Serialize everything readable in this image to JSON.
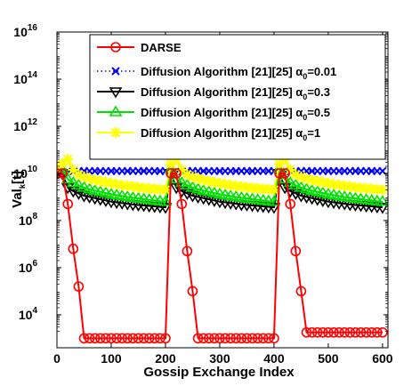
{
  "chart_data": {
    "type": "line",
    "xlabel": "Gossip Exchange Index",
    "ylabel": "Val",
    "ylabel_sub": "k",
    "ylabel_suffix": "[t]",
    "xlim": [
      0,
      610
    ],
    "ylim_log10": [
      2.6,
      16
    ],
    "log_y": true,
    "grid": false,
    "legend_position": "top-right",
    "x_ticks": [
      {
        "value": 0,
        "label": "0"
      },
      {
        "value": 100,
        "label": "100"
      },
      {
        "value": 200,
        "label": "200"
      },
      {
        "value": 300,
        "label": "300"
      },
      {
        "value": 400,
        "label": "400"
      },
      {
        "value": 500,
        "label": "500"
      },
      {
        "value": 600,
        "label": "600"
      }
    ],
    "y_ticks": [
      {
        "exp": 4,
        "base": "10",
        "power": "4"
      },
      {
        "exp": 6,
        "base": "10",
        "power": "6"
      },
      {
        "exp": 8,
        "base": "10",
        "power": "8"
      },
      {
        "exp": 10,
        "base": "10",
        "power": "10"
      },
      {
        "exp": 12,
        "base": "10",
        "power": "12"
      },
      {
        "exp": 14,
        "base": "10",
        "power": "14"
      },
      {
        "exp": 16,
        "base": "10",
        "power": "16"
      }
    ],
    "series": [
      {
        "name": "DARSE",
        "color": "#ff0000",
        "marker": "circle",
        "line": "solid",
        "x": [
          0,
          10,
          20,
          30,
          40,
          50,
          60,
          70,
          80,
          90,
          100,
          110,
          120,
          130,
          140,
          150,
          160,
          170,
          180,
          190,
          200,
          210,
          220,
          230,
          240,
          250,
          260,
          270,
          280,
          290,
          300,
          310,
          320,
          330,
          340,
          350,
          360,
          370,
          380,
          390,
          400,
          410,
          420,
          430,
          440,
          450,
          460,
          470,
          480,
          490,
          500,
          510,
          520,
          530,
          540,
          550,
          560,
          570,
          580,
          590,
          600
        ],
        "log10_y": [
          10.0,
          10.0,
          8.7,
          6.8,
          5.2,
          3.0,
          3.0,
          3.0,
          3.0,
          3.0,
          3.0,
          3.0,
          3.0,
          3.0,
          3.0,
          3.0,
          3.0,
          3.0,
          3.0,
          3.0,
          3.0,
          10.0,
          10.0,
          8.7,
          6.7,
          5.0,
          3.0,
          3.0,
          3.0,
          3.0,
          3.0,
          3.0,
          3.0,
          3.0,
          3.0,
          3.0,
          3.0,
          3.0,
          3.0,
          3.0,
          3.0,
          10.0,
          10.0,
          8.7,
          6.7,
          5.0,
          3.25,
          3.25,
          3.25,
          3.25,
          3.25,
          3.25,
          3.25,
          3.25,
          3.25,
          3.25,
          3.25,
          3.25,
          3.25,
          3.25,
          3.25
        ]
      },
      {
        "name": "Diffusion Algorithm [21][25] α0=0.01",
        "legend_main": "Diffusion Algorithm [21][25] α",
        "legend_sub": "0",
        "legend_suffix": "=0.01",
        "color": "#0000ff",
        "marker": "x",
        "line": "dotted",
        "x": [
          0,
          10,
          20,
          30,
          40,
          50,
          60,
          70,
          80,
          90,
          100,
          110,
          120,
          130,
          140,
          150,
          160,
          170,
          180,
          190,
          200,
          210,
          220,
          230,
          240,
          250,
          260,
          270,
          280,
          290,
          300,
          310,
          320,
          330,
          340,
          350,
          360,
          370,
          380,
          390,
          400,
          410,
          420,
          430,
          440,
          450,
          460,
          470,
          480,
          490,
          500,
          510,
          520,
          530,
          540,
          550,
          560,
          570,
          580,
          590,
          600
        ],
        "log10_y": [
          10.1,
          10.1,
          10.1,
          10.1,
          10.1,
          10.1,
          10.1,
          10.1,
          10.1,
          10.1,
          10.1,
          10.1,
          10.1,
          10.1,
          10.1,
          10.1,
          10.1,
          10.1,
          10.1,
          10.1,
          10.1,
          10.1,
          10.1,
          10.1,
          10.1,
          10.1,
          10.1,
          10.1,
          10.1,
          10.1,
          10.1,
          10.1,
          10.1,
          10.1,
          10.1,
          10.1,
          10.1,
          10.1,
          10.1,
          10.1,
          10.1,
          10.1,
          10.1,
          10.1,
          10.1,
          10.1,
          10.1,
          10.1,
          10.1,
          10.1,
          10.1,
          10.1,
          10.1,
          10.1,
          10.1,
          10.1,
          10.1,
          10.1,
          10.1,
          10.1,
          10.1
        ]
      },
      {
        "name": "Diffusion Algorithm [21][25] α0=0.3",
        "legend_main": "Diffusion Algorithm [21][25] α",
        "legend_sub": "0",
        "legend_suffix": "=0.3",
        "color": "#000000",
        "marker": "triangle-down",
        "line": "solid",
        "x": [
          0,
          10,
          20,
          30,
          40,
          50,
          60,
          70,
          80,
          90,
          100,
          110,
          120,
          130,
          140,
          150,
          160,
          170,
          180,
          190,
          200,
          210,
          220,
          230,
          240,
          250,
          260,
          270,
          280,
          290,
          300,
          310,
          320,
          330,
          340,
          350,
          360,
          370,
          380,
          390,
          400,
          410,
          420,
          430,
          440,
          450,
          460,
          470,
          480,
          490,
          500,
          510,
          520,
          530,
          540,
          550,
          560,
          570,
          580,
          590,
          600
        ],
        "log10_y": [
          10.1,
          10.0,
          9.4,
          9.25,
          9.15,
          9.05,
          9.0,
          8.95,
          8.9,
          8.85,
          8.8,
          8.77,
          8.74,
          8.71,
          8.68,
          8.66,
          8.64,
          8.62,
          8.6,
          8.58,
          8.56,
          10.0,
          9.4,
          9.25,
          9.15,
          9.05,
          9.0,
          8.95,
          8.9,
          8.85,
          8.8,
          8.77,
          8.74,
          8.71,
          8.68,
          8.66,
          8.64,
          8.62,
          8.6,
          8.58,
          8.56,
          10.0,
          9.4,
          9.25,
          9.15,
          9.05,
          9.0,
          8.95,
          8.9,
          8.85,
          8.8,
          8.77,
          8.74,
          8.71,
          8.68,
          8.66,
          8.64,
          8.62,
          8.6,
          8.58,
          8.56
        ]
      },
      {
        "name": "Diffusion Algorithm [21][25] α0=0.5",
        "legend_main": "Diffusion Algorithm [21][25] α",
        "legend_sub": "0",
        "legend_suffix": "=0.5",
        "color": "#00e000",
        "marker": "triangle-up",
        "line": "solid",
        "x": [
          0,
          10,
          20,
          30,
          40,
          50,
          60,
          70,
          80,
          90,
          100,
          110,
          120,
          130,
          140,
          150,
          160,
          170,
          180,
          190,
          200,
          210,
          220,
          230,
          240,
          250,
          260,
          270,
          280,
          290,
          300,
          310,
          320,
          330,
          340,
          350,
          360,
          370,
          380,
          390,
          400,
          410,
          420,
          430,
          440,
          450,
          460,
          470,
          480,
          490,
          500,
          510,
          520,
          530,
          540,
          550,
          560,
          570,
          580,
          590,
          600
        ],
        "log10_y": [
          10.15,
          10.2,
          9.75,
          9.6,
          9.5,
          9.4,
          9.33,
          9.27,
          9.22,
          9.17,
          9.12,
          9.08,
          9.04,
          9.0,
          8.97,
          8.94,
          8.91,
          8.88,
          8.85,
          8.82,
          8.8,
          10.2,
          9.75,
          9.6,
          9.5,
          9.4,
          9.33,
          9.27,
          9.22,
          9.17,
          9.12,
          9.08,
          9.04,
          9.0,
          8.97,
          8.94,
          8.91,
          8.88,
          8.85,
          8.82,
          8.8,
          10.2,
          9.75,
          9.6,
          9.5,
          9.4,
          9.33,
          9.27,
          9.22,
          9.17,
          9.12,
          9.08,
          9.04,
          9.0,
          8.97,
          8.94,
          8.91,
          8.88,
          8.85,
          8.82,
          8.8
        ]
      },
      {
        "name": "Diffusion Algorithm [21][25] α0=1",
        "legend_main": "Diffusion Algorithm [21][25] α",
        "legend_sub": "0",
        "legend_suffix": "=1",
        "color": "#ffff00",
        "marker": "star",
        "line": "solid",
        "x": [
          0,
          10,
          20,
          30,
          40,
          50,
          60,
          70,
          80,
          90,
          100,
          110,
          120,
          130,
          140,
          150,
          160,
          170,
          180,
          190,
          200,
          210,
          220,
          230,
          240,
          250,
          260,
          270,
          280,
          290,
          300,
          310,
          320,
          330,
          340,
          350,
          360,
          370,
          380,
          390,
          400,
          410,
          420,
          430,
          440,
          450,
          460,
          470,
          480,
          490,
          500,
          510,
          520,
          530,
          540,
          550,
          560,
          570,
          580,
          590,
          600
        ],
        "log10_y": [
          10.25,
          10.4,
          10.6,
          10.15,
          9.95,
          9.85,
          9.78,
          9.72,
          9.67,
          9.62,
          9.58,
          9.54,
          9.5,
          9.47,
          9.44,
          9.41,
          9.38,
          9.36,
          9.34,
          9.32,
          9.3,
          10.4,
          10.6,
          10.15,
          9.95,
          9.85,
          9.78,
          9.72,
          9.67,
          9.62,
          9.58,
          9.54,
          9.5,
          9.47,
          9.44,
          9.41,
          9.38,
          9.36,
          9.34,
          9.32,
          9.3,
          10.4,
          10.6,
          10.15,
          9.95,
          9.85,
          9.78,
          9.72,
          9.67,
          9.62,
          9.58,
          9.54,
          9.5,
          9.47,
          9.44,
          9.41,
          9.38,
          9.36,
          9.34,
          9.32,
          9.3
        ]
      }
    ]
  }
}
